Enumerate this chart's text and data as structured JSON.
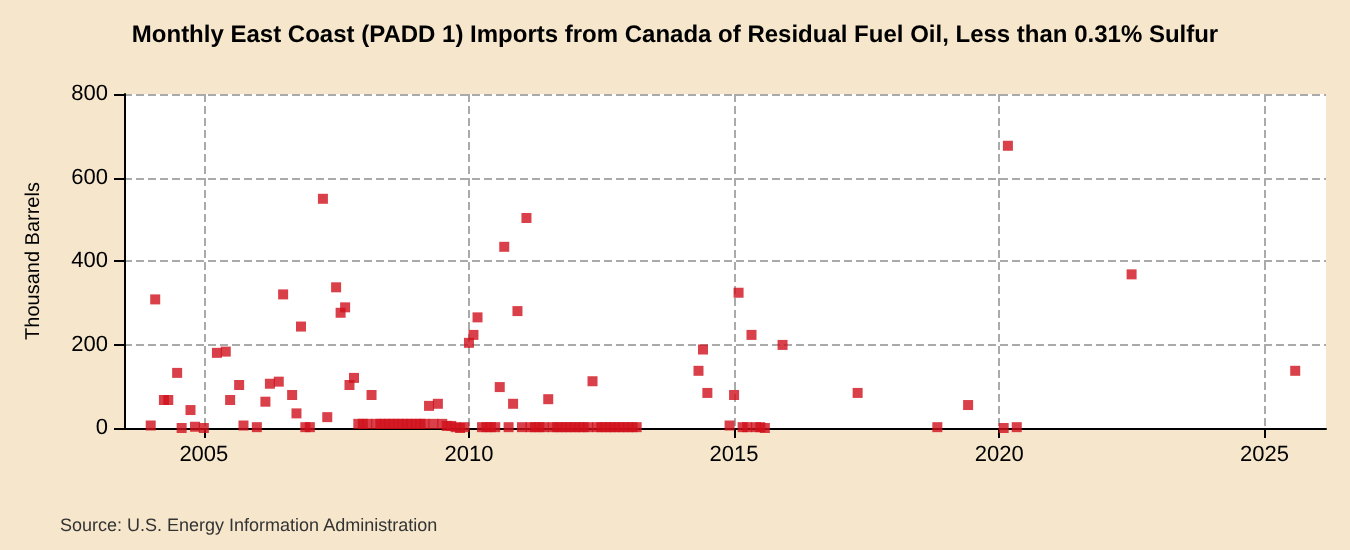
{
  "chart_data": {
    "type": "scatter",
    "title": "Monthly East Coast (PADD 1) Imports from Canada of Residual Fuel Oil, Less than 0.31% Sulfur",
    "ylabel": "Thousand Barrels",
    "annotations": [
      "Source: U.S. Energy Information Administration"
    ],
    "x": [
      "2004-01",
      "2004-02",
      "2004-04",
      "2004-05",
      "2004-07",
      "2004-08",
      "2004-10",
      "2004-11",
      "2005-01",
      "2005-04",
      "2005-06",
      "2005-07",
      "2005-09",
      "2005-10",
      "2006-01",
      "2006-03",
      "2006-04",
      "2006-06",
      "2006-07",
      "2006-09",
      "2006-10",
      "2006-11",
      "2006-12",
      "2007-01",
      "2007-04",
      "2007-05",
      "2007-07",
      "2007-08",
      "2007-09",
      "2007-10",
      "2007-11",
      "2007-12",
      "2008-01",
      "2008-02",
      "2008-03",
      "2008-04",
      "2008-05",
      "2008-06",
      "2008-07",
      "2008-08",
      "2008-09",
      "2008-10",
      "2008-11",
      "2008-12",
      "2009-01",
      "2009-02",
      "2009-03",
      "2009-04",
      "2009-05",
      "2009-06",
      "2009-07",
      "2009-08",
      "2009-09",
      "2009-10",
      "2009-11",
      "2009-12",
      "2010-01",
      "2010-02",
      "2010-03",
      "2010-04",
      "2010-05",
      "2010-06",
      "2010-07",
      "2010-08",
      "2010-09",
      "2010-10",
      "2010-11",
      "2010-12",
      "2011-01",
      "2011-02",
      "2011-03",
      "2011-04",
      "2011-05",
      "2011-06",
      "2011-07",
      "2011-08",
      "2011-09",
      "2011-10",
      "2011-11",
      "2011-12",
      "2012-01",
      "2012-02",
      "2012-03",
      "2012-04",
      "2012-05",
      "2012-06",
      "2012-07",
      "2012-08",
      "2012-09",
      "2012-10",
      "2012-11",
      "2012-12",
      "2013-01",
      "2013-02",
      "2013-03",
      "2014-05",
      "2014-06",
      "2014-07",
      "2014-12",
      "2015-01",
      "2015-02",
      "2015-03",
      "2015-04",
      "2015-05",
      "2015-06",
      "2015-07",
      "2015-08",
      "2015-12",
      "2017-05",
      "2018-11",
      "2019-06",
      "2020-02",
      "2020-03",
      "2020-05",
      "2022-07",
      "2025-08"
    ],
    "series": [
      {
        "color": "#d0101c",
        "values": [
          6,
          308,
          67,
          67,
          132,
          0,
          43,
          3,
          0,
          180,
          183,
          67,
          103,
          6,
          2,
          63,
          106,
          111,
          320,
          79,
          35,
          243,
          2,
          2,
          549,
          26,
          337,
          276,
          289,
          103,
          120,
          10,
          10,
          10,
          79,
          10,
          10,
          10,
          10,
          10,
          10,
          10,
          10,
          10,
          10,
          10,
          10,
          53,
          10,
          58,
          10,
          5,
          5,
          2,
          0,
          2,
          204,
          223,
          265,
          2,
          2,
          2,
          2,
          98,
          434,
          2,
          58,
          280,
          2,
          503,
          2,
          2,
          2,
          2,
          69,
          2,
          2,
          2,
          2,
          2,
          2,
          2,
          2,
          2,
          112,
          2,
          2,
          2,
          2,
          2,
          2,
          2,
          2,
          2,
          2,
          137,
          188,
          84,
          6,
          79,
          324,
          2,
          2,
          223,
          2,
          2,
          0,
          199,
          84,
          2,
          55,
          0,
          676,
          2,
          368,
          137
        ]
      }
    ],
    "xlim": [
      "2003-07",
      "2026-03"
    ],
    "xticks": [
      {
        "value": "2005-01",
        "label": "2005"
      },
      {
        "value": "2010-01",
        "label": "2010"
      },
      {
        "value": "2015-01",
        "label": "2015"
      },
      {
        "value": "2020-01",
        "label": "2020"
      },
      {
        "value": "2025-01",
        "label": "2025"
      }
    ],
    "ylim": [
      0,
      800
    ],
    "yticks": [
      0,
      200,
      400,
      600,
      800
    ],
    "grid": true,
    "marker": "square"
  }
}
